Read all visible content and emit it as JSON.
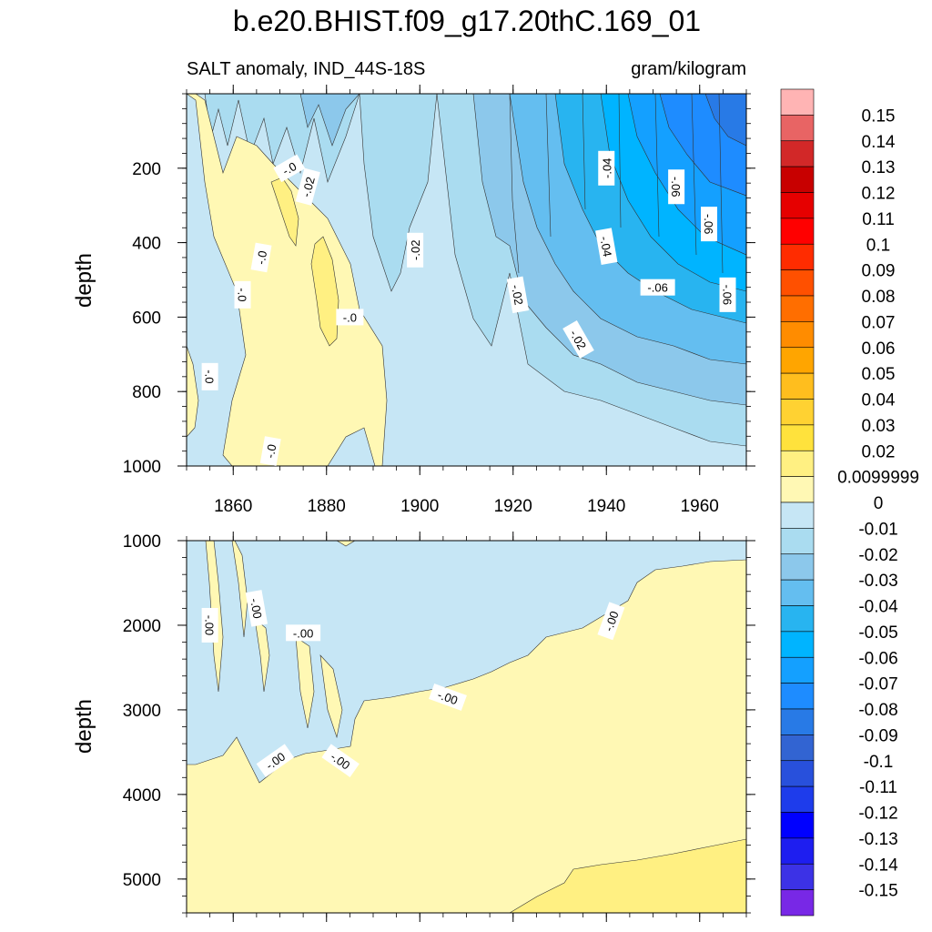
{
  "chart_data": [
    {
      "type": "contour",
      "title": "b.e20.BHIST.f09_g17.20thC.169_01",
      "subtitle_left": "SALT anomaly, IND_44S-18S",
      "subtitle_right": "gram/kilogram",
      "ylabel": "depth",
      "xlim": [
        1850,
        1970
      ],
      "ylim": [
        1000,
        0
      ],
      "xticks": [
        "1860",
        "1880",
        "1900",
        "1920",
        "1940",
        "1960"
      ],
      "yticks": [
        "200",
        "400",
        "600",
        "800",
        "1000"
      ],
      "contour_labels": [
        {
          "text": "-.0",
          "x": 1872,
          "y": 200,
          "rot": -30
        },
        {
          "text": "-.02",
          "x": 1876,
          "y": 250,
          "rot": -75
        },
        {
          "text": "-.0",
          "x": 1866,
          "y": 440,
          "rot": -80
        },
        {
          "text": "-.0",
          "x": 1862,
          "y": 540,
          "rot": 90
        },
        {
          "text": "-.02",
          "x": 1899,
          "y": 420,
          "rot": -90
        },
        {
          "text": "-.0",
          "x": 1885,
          "y": 600,
          "rot": 0
        },
        {
          "text": "-.0",
          "x": 1855,
          "y": 760,
          "rot": 90
        },
        {
          "text": "-.0",
          "x": 1868,
          "y": 960,
          "rot": -80
        },
        {
          "text": "-.04",
          "x": 1940,
          "y": 200,
          "rot": -90
        },
        {
          "text": "-.06",
          "x": 1955,
          "y": 250,
          "rot": 90
        },
        {
          "text": "-.06",
          "x": 1962,
          "y": 350,
          "rot": 90
        },
        {
          "text": "-.04",
          "x": 1940,
          "y": 410,
          "rot": 80
        },
        {
          "text": "-.02",
          "x": 1921,
          "y": 540,
          "rot": 80
        },
        {
          "text": "-.06",
          "x": 1951,
          "y": 520,
          "rot": 0
        },
        {
          "text": "-.06",
          "x": 1966,
          "y": 540,
          "rot": 90
        },
        {
          "text": "-.02",
          "x": 1934,
          "y": 660,
          "rot": 60
        }
      ]
    },
    {
      "type": "contour",
      "ylabel": "depth",
      "xlim": [
        1850,
        1970
      ],
      "ylim": [
        5400,
        1000
      ],
      "yticks": [
        "1000",
        "2000",
        "3000",
        "4000",
        "5000"
      ],
      "contour_labels": [
        {
          "text": "-.00",
          "x": 1855,
          "y": 2000,
          "rot": 90
        },
        {
          "text": "-.00",
          "x": 1865,
          "y": 1800,
          "rot": 80
        },
        {
          "text": "-.00",
          "x": 1875,
          "y": 2090,
          "rot": 0
        },
        {
          "text": "-.00",
          "x": 1906,
          "y": 2850,
          "rot": 20
        },
        {
          "text": "-.00",
          "x": 1869,
          "y": 3600,
          "rot": -35
        },
        {
          "text": "-.00",
          "x": 1883,
          "y": 3600,
          "rot": 35
        },
        {
          "text": "-.00",
          "x": 1941,
          "y": 1950,
          "rot": -70
        }
      ]
    }
  ],
  "colorbar": {
    "colors": [
      "#ffb4b4",
      "#e86464",
      "#d22828",
      "#c80000",
      "#e60000",
      "#ff0000",
      "#ff2c00",
      "#ff5000",
      "#ff6e00",
      "#ff8c00",
      "#ffa500",
      "#ffbe1e",
      "#ffd232",
      "#ffe23c",
      "#fff082",
      "#fff8b4",
      "#c6e6f5",
      "#aadcf0",
      "#8cc8eb",
      "#64bef0",
      "#28b4f0",
      "#00b4ff",
      "#14a0ff",
      "#1e8cff",
      "#287ae6",
      "#3264d2",
      "#2850dc",
      "#1e3ceb",
      "#0000ff",
      "#1e1ef0",
      "#3c32e6",
      "#7828e6"
    ],
    "labels": [
      "0.15",
      "0.14",
      "0.13",
      "0.12",
      "0.11",
      "0.1",
      "0.09",
      "0.08",
      "0.07",
      "0.06",
      "0.05",
      "0.04",
      "0.03",
      "0.02",
      "0.0099999",
      "0",
      "-0.01",
      "-0.02",
      "-0.03",
      "-0.04",
      "-0.05",
      "-0.06",
      "-0.07",
      "-0.08",
      "-0.09",
      "-0.1",
      "-0.11",
      "-0.12",
      "-0.13",
      "-0.14",
      "-0.15"
    ]
  }
}
